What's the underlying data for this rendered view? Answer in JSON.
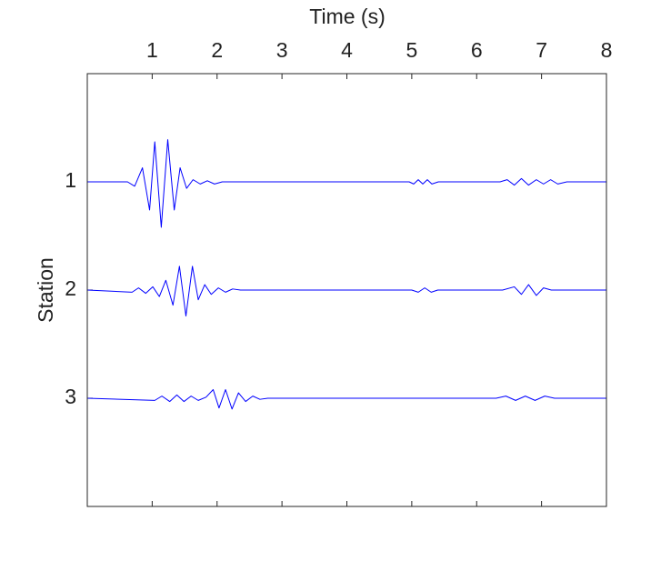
{
  "chart_data": {
    "type": "line",
    "xlabel": "Time (s)",
    "ylabel": "Station",
    "xlim": [
      0,
      8
    ],
    "xticks": [
      1,
      2,
      3,
      4,
      5,
      6,
      7,
      8
    ],
    "x_axis_position": "top",
    "ylim": [
      0,
      4
    ],
    "yticks": [
      1,
      2,
      3
    ],
    "y_reversed": true,
    "grid": false,
    "series": [
      {
        "name": "1",
        "color": "#0000ff",
        "x": [
          0,
          0.62,
          0.73,
          0.85,
          0.96,
          1.04,
          1.14,
          1.24,
          1.34,
          1.43,
          1.53,
          1.63,
          1.74,
          1.85,
          1.96,
          2.08,
          4.96,
          5.03,
          5.1,
          5.17,
          5.24,
          5.31,
          5.41,
          6.36,
          6.47,
          6.58,
          6.69,
          6.8,
          6.92,
          7.03,
          7.14,
          7.25,
          7.39,
          8
        ],
        "values": [
          1,
          1,
          1.04,
          0.87,
          1.26,
          0.63,
          1.42,
          0.61,
          1.26,
          0.87,
          1.06,
          0.98,
          1.02,
          0.99,
          1.02,
          1,
          1,
          1.02,
          0.98,
          1.02,
          0.98,
          1.02,
          1,
          1,
          0.98,
          1.03,
          0.97,
          1.03,
          0.98,
          1.02,
          0.98,
          1.02,
          1,
          1
        ]
      },
      {
        "name": "2",
        "color": "#0000ff",
        "x": [
          0,
          0.69,
          0.79,
          0.9,
          1.01,
          1.11,
          1.21,
          1.32,
          1.42,
          1.52,
          1.62,
          1.71,
          1.81,
          1.91,
          2.02,
          2.13,
          2.24,
          2.36,
          5.0,
          5.1,
          5.2,
          5.3,
          5.4,
          6.4,
          6.58,
          6.69,
          6.8,
          6.92,
          7.03,
          7.15,
          8
        ],
        "values": [
          2,
          2.02,
          1.98,
          2.03,
          1.97,
          2.06,
          1.91,
          2.14,
          1.78,
          2.24,
          1.78,
          2.09,
          1.95,
          2.04,
          1.98,
          2.02,
          1.99,
          2,
          2,
          2.02,
          1.98,
          2.02,
          2,
          2,
          1.97,
          2.04,
          1.95,
          2.05,
          1.98,
          2,
          2
        ]
      },
      {
        "name": "3",
        "color": "#0000ff",
        "x": [
          0,
          1.04,
          1.15,
          1.27,
          1.38,
          1.49,
          1.6,
          1.71,
          1.83,
          1.94,
          2.03,
          2.13,
          2.23,
          2.33,
          2.44,
          2.55,
          2.66,
          2.78,
          6.3,
          6.45,
          6.6,
          6.75,
          6.9,
          7.05,
          7.2,
          8
        ],
        "values": [
          3,
          3.02,
          2.98,
          3.03,
          2.97,
          3.03,
          2.98,
          3.02,
          2.99,
          2.92,
          3.09,
          2.92,
          3.1,
          2.95,
          3.03,
          2.98,
          3.01,
          3,
          3,
          2.98,
          3.02,
          2.98,
          3.02,
          2.98,
          3,
          3
        ]
      }
    ]
  }
}
